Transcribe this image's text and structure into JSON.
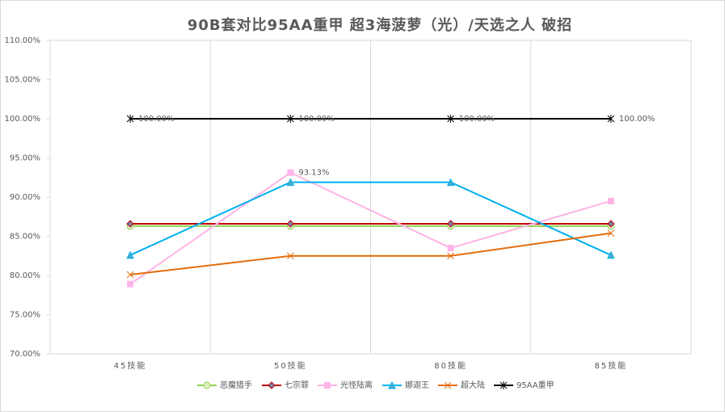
{
  "chart_data": {
    "type": "line",
    "title": "90B套对比95AA重甲 超3海菠萝（光）/天选之人 破招",
    "categories": [
      "45技能",
      "50技能",
      "80技能",
      "85技能"
    ],
    "ylim": [
      70,
      110
    ],
    "yticks": [
      {
        "value": 70,
        "label": "70.00%"
      },
      {
        "value": 75,
        "label": "75.00%"
      },
      {
        "value": 80,
        "label": "80.00%"
      },
      {
        "value": 85,
        "label": "85.00%"
      },
      {
        "value": 90,
        "label": "90.00%"
      },
      {
        "value": 95,
        "label": "95.00%"
      },
      {
        "value": 100,
        "label": "100.00%"
      },
      {
        "value": 105,
        "label": "105.00%"
      },
      {
        "value": 110,
        "label": "110.00%"
      }
    ],
    "grid": true,
    "legend": "bottom",
    "series": [
      {
        "name": "恶魔猎手",
        "color": "#92d050",
        "marker": "circle",
        "values": [
          86.3,
          86.3,
          86.3,
          86.3
        ]
      },
      {
        "name": "七宗罪",
        "color": "#c00000",
        "marker": "diamond",
        "values": [
          86.6,
          86.6,
          86.6,
          86.6
        ]
      },
      {
        "name": "光怪陆离",
        "color": "#ffb3e6",
        "marker": "square",
        "values": [
          78.9,
          93.13,
          83.5,
          89.5
        ],
        "value_labels": [
          null,
          "93.13%",
          null,
          null
        ]
      },
      {
        "name": "娜迦王",
        "color": "#00b0f0",
        "marker": "triangle",
        "values": [
          82.6,
          91.9,
          91.9,
          82.6
        ]
      },
      {
        "name": "超大陆",
        "color": "#e46c0a",
        "marker": "x",
        "values": [
          80.1,
          82.5,
          82.5,
          85.4
        ]
      },
      {
        "name": "95AA重甲",
        "color": "#000000",
        "marker": "star",
        "values": [
          100,
          100,
          100,
          100
        ],
        "value_labels": [
          "100.00%",
          "100.00%",
          "100.00%",
          "100.00%"
        ]
      }
    ]
  }
}
